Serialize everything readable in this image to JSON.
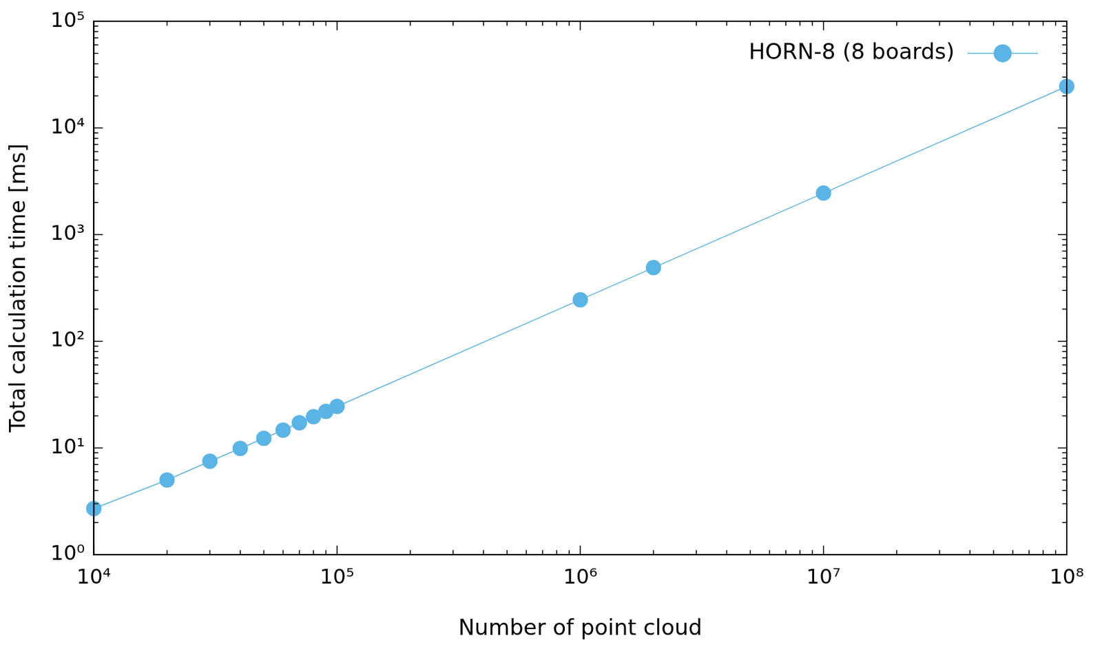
{
  "chart_data": {
    "type": "line",
    "x_label": "Number of point cloud",
    "y_label": "Total calculation time [ms]",
    "x": [
      10000,
      20000,
      30000,
      40000,
      50000,
      60000,
      70000,
      80000,
      90000,
      100000,
      1000000,
      2000000,
      10000000,
      100000000
    ],
    "series": [
      {
        "name": "HORN-8 (8 boards)",
        "color": "#5ab4e5",
        "marker": "circle",
        "line_style": "solid",
        "values": [
          2.7,
          5.0,
          7.5,
          9.9,
          12.3,
          14.7,
          17.2,
          19.6,
          22.0,
          24.5,
          245,
          490,
          2450,
          24500
        ]
      }
    ],
    "xlim": [
      10000,
      100000000
    ],
    "xticks": [
      {
        "value": 10000,
        "label": "10⁴"
      },
      {
        "value": 100000,
        "label": "10⁵"
      },
      {
        "value": 1000000,
        "label": "10⁶"
      },
      {
        "value": 10000000,
        "label": "10⁷"
      },
      {
        "value": 100000000,
        "label": "10⁸"
      }
    ],
    "ylim": [
      1,
      100000
    ],
    "yticks": [
      {
        "value": 1,
        "label": "10⁰"
      },
      {
        "value": 10,
        "label": "10¹"
      },
      {
        "value": 100,
        "label": "10²"
      },
      {
        "value": 1000,
        "label": "10³"
      },
      {
        "value": 10000,
        "label": "10⁴"
      },
      {
        "value": 100000,
        "label": "10⁵"
      }
    ],
    "log": true,
    "grid": false,
    "legend": "upper right"
  }
}
